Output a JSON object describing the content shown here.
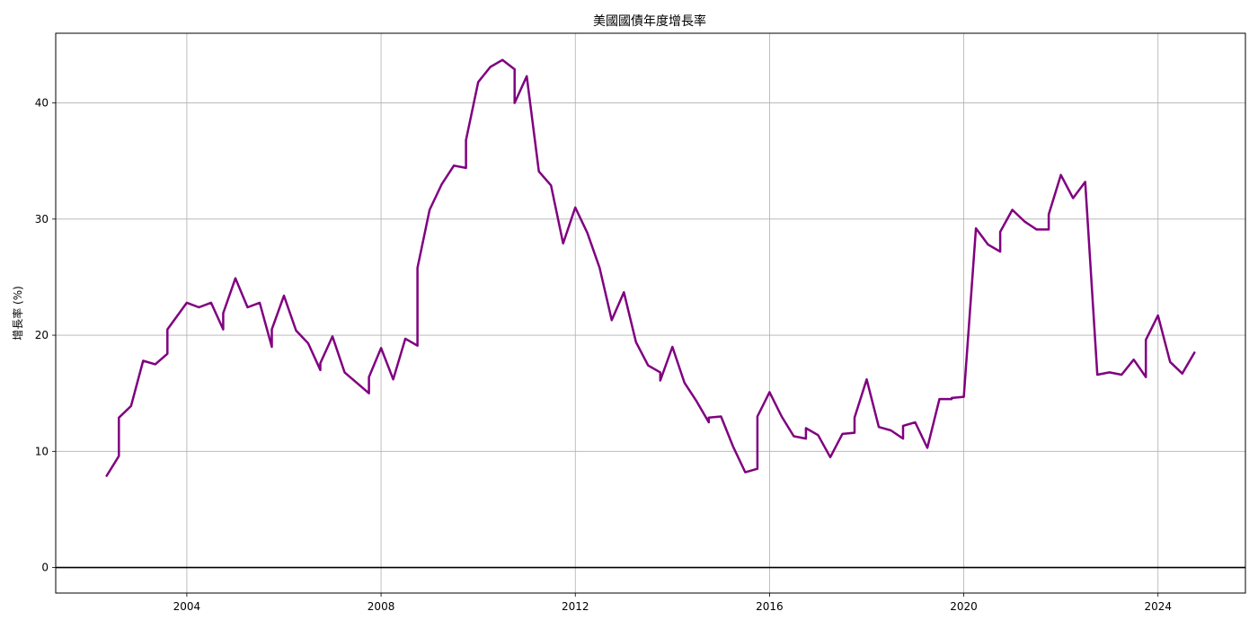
{
  "chart_data": {
    "type": "line",
    "title": "美國國債年度增長率",
    "xlabel": "",
    "ylabel": "增長率 (%)",
    "xlim": [
      2001.3,
      2025.8
    ],
    "ylim": [
      -2.2,
      46.0
    ],
    "xticks": [
      2004,
      2008,
      2012,
      2016,
      2020,
      2024
    ],
    "yticks": [
      0,
      10,
      20,
      30,
      40
    ],
    "grid": true,
    "reference_line_y": 0,
    "colors": {
      "series": "#800080",
      "grid": "#b0b0b0",
      "reference": "#000000"
    },
    "series": [
      {
        "x": [
          2002.35,
          2002.6,
          2002.6,
          2002.85,
          2003.1,
          2003.35,
          2003.6,
          2003.6,
          2004.0,
          2004.25,
          2004.5,
          2004.75,
          2004.75,
          2005.0,
          2005.25,
          2005.5,
          2005.75,
          2005.75,
          2006.0,
          2006.25,
          2006.5,
          2006.75,
          2006.75,
          2007.0,
          2007.25,
          2007.5,
          2007.75,
          2007.75,
          2008.0,
          2008.25,
          2008.5,
          2008.75,
          2008.75,
          2009.0,
          2009.25,
          2009.5,
          2009.75,
          2009.75,
          2010.0,
          2010.25,
          2010.5,
          2010.75,
          2010.75,
          2011.0,
          2011.25,
          2011.5,
          2011.75,
          2012.0,
          2012.25,
          2012.5,
          2012.75,
          2013.0,
          2013.25,
          2013.5,
          2013.75,
          2013.75,
          2014.0,
          2014.25,
          2014.5,
          2014.75,
          2014.75,
          2015.0,
          2015.25,
          2015.5,
          2015.75,
          2015.75,
          2016.0,
          2016.25,
          2016.5,
          2016.75,
          2016.75,
          2017.0,
          2017.25,
          2017.5,
          2017.75,
          2017.75,
          2018.0,
          2018.25,
          2018.5,
          2018.75,
          2018.75,
          2019.0,
          2019.25,
          2019.5,
          2019.75,
          2019.75,
          2020.0,
          2020.25,
          2020.5,
          2020.75,
          2020.75,
          2021.0,
          2021.25,
          2021.5,
          2021.75,
          2021.75,
          2022.0,
          2022.25,
          2022.5,
          2022.75,
          2023.0,
          2023.25,
          2023.5,
          2023.75,
          2023.75,
          2024.0,
          2024.25,
          2024.5,
          2024.75
        ],
        "values": [
          7.9,
          9.6,
          12.9,
          13.9,
          17.8,
          17.5,
          18.4,
          20.5,
          22.8,
          22.4,
          22.8,
          20.5,
          21.9,
          24.9,
          22.4,
          22.8,
          19.0,
          20.5,
          23.4,
          20.4,
          19.3,
          17.0,
          17.6,
          19.9,
          16.8,
          15.9,
          15.0,
          16.4,
          18.9,
          16.2,
          19.7,
          19.1,
          25.8,
          30.8,
          33.0,
          34.6,
          34.4,
          36.8,
          41.8,
          43.1,
          43.7,
          42.9,
          40.0,
          42.3,
          34.1,
          32.9,
          27.9,
          31.0,
          28.8,
          25.8,
          21.3,
          23.7,
          19.4,
          17.4,
          16.8,
          16.1,
          19.0,
          15.9,
          14.3,
          12.5,
          12.9,
          13.0,
          10.4,
          8.2,
          8.5,
          13.0,
          15.1,
          13.0,
          11.3,
          11.1,
          12.0,
          11.4,
          9.5,
          11.5,
          11.6,
          12.9,
          16.2,
          12.1,
          11.8,
          11.1,
          12.2,
          12.5,
          10.3,
          14.5,
          14.5,
          14.6,
          14.7,
          29.2,
          27.8,
          27.2,
          28.9,
          30.8,
          29.8,
          29.1,
          29.1,
          30.4,
          33.8,
          31.8,
          33.2,
          16.6,
          16.8,
          16.6,
          17.9,
          16.4,
          19.6,
          21.7,
          17.7,
          16.7,
          18.5
        ]
      }
    ]
  }
}
